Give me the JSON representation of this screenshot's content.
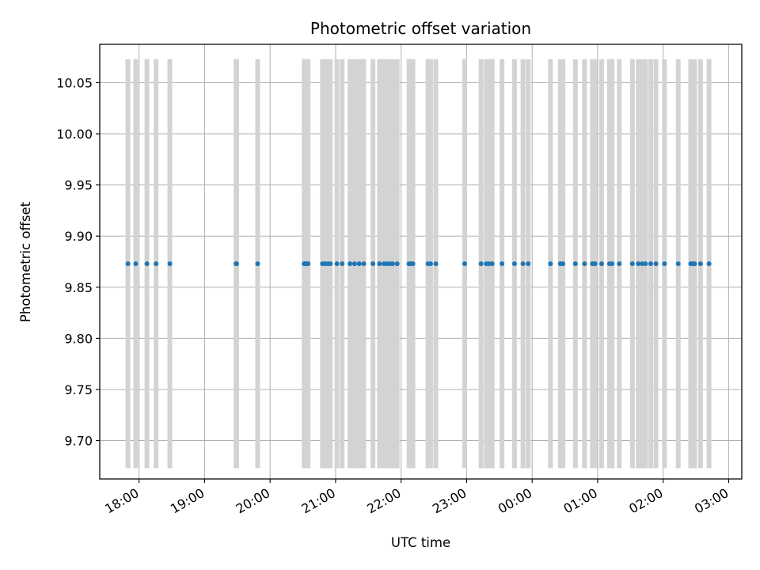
{
  "chart_data": {
    "type": "scatter",
    "title": "Photometric offset variation",
    "xlabel": "UTC time",
    "ylabel": "Photometric offset",
    "x_unit": "hours since 00:00 UTC of first day (values > 24 are next day)",
    "xlim": [
      17.4,
      27.2
    ],
    "ylim": [
      9.6625,
      10.0875
    ],
    "grid": true,
    "x_ticks": [
      {
        "value": 18,
        "label": "18:00"
      },
      {
        "value": 19,
        "label": "19:00"
      },
      {
        "value": 20,
        "label": "20:00"
      },
      {
        "value": 21,
        "label": "21:00"
      },
      {
        "value": 22,
        "label": "22:00"
      },
      {
        "value": 23,
        "label": "23:00"
      },
      {
        "value": 24,
        "label": "00:00"
      },
      {
        "value": 25,
        "label": "01:00"
      },
      {
        "value": 26,
        "label": "02:00"
      },
      {
        "value": 27,
        "label": "03:00"
      }
    ],
    "y_ticks": [
      {
        "value": 9.7,
        "label": "9.70"
      },
      {
        "value": 9.75,
        "label": "9.75"
      },
      {
        "value": 9.8,
        "label": "9.80"
      },
      {
        "value": 9.85,
        "label": "9.85"
      },
      {
        "value": 9.9,
        "label": "9.90"
      },
      {
        "value": 9.95,
        "label": "9.95"
      },
      {
        "value": 10.0,
        "label": "10.00"
      },
      {
        "value": 10.05,
        "label": "10.05"
      }
    ],
    "errorbar_range": [
      9.673,
      10.073
    ],
    "series": [
      {
        "marker_color": "#1f77b4",
        "errorbar_color": "#d3d3d3",
        "y_value": 9.873,
        "x": [
          17.83,
          17.95,
          18.12,
          18.26,
          18.47,
          19.48,
          19.49,
          19.81,
          20.52,
          20.55,
          20.58,
          20.8,
          20.84,
          20.88,
          20.92,
          21.02,
          21.1,
          21.22,
          21.29,
          21.36,
          21.43,
          21.57,
          21.67,
          21.74,
          21.79,
          21.84,
          21.87,
          21.94,
          22.12,
          22.15,
          22.18,
          22.41,
          22.45,
          22.53,
          22.97,
          23.22,
          23.3,
          23.34,
          23.39,
          23.54,
          23.73,
          23.86,
          23.94,
          24.28,
          24.43,
          24.47,
          24.66,
          24.8,
          24.92,
          24.96,
          25.06,
          25.18,
          25.22,
          25.33,
          25.53,
          25.62,
          25.68,
          25.73,
          25.81,
          25.89,
          26.02,
          26.23,
          26.42,
          26.45,
          26.48,
          26.57,
          26.7
        ]
      }
    ]
  }
}
